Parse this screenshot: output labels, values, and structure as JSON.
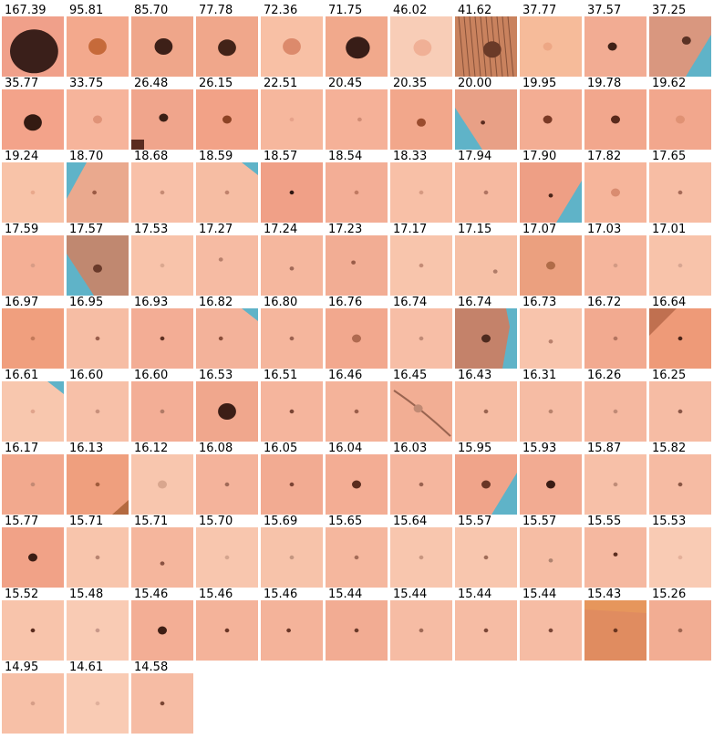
{
  "tiles": [
    {
      "score": "167.39",
      "skin": "#f0a08a",
      "lesion": "#3a1f1a",
      "les_size": "xl",
      "le_x": 0.52,
      "le_y": 0.58,
      "artifact": "none"
    },
    {
      "score": "95.81",
      "skin": "#f3a98d",
      "lesion": "#c66a3a",
      "les_size": "m",
      "le_x": 0.5,
      "le_y": 0.5,
      "artifact": "none"
    },
    {
      "score": "85.70",
      "skin": "#efa68a",
      "lesion": "#3d2018",
      "les_size": "m",
      "le_x": 0.52,
      "le_y": 0.5,
      "artifact": "none"
    },
    {
      "score": "77.78",
      "skin": "#f0a78b",
      "lesion": "#432318",
      "les_size": "m",
      "le_x": 0.5,
      "le_y": 0.52,
      "artifact": "none"
    },
    {
      "score": "72.36",
      "skin": "#f8c0a5",
      "lesion": "#dc8a6c",
      "les_size": "m",
      "le_x": 0.5,
      "le_y": 0.5,
      "artifact": "none"
    },
    {
      "score": "71.75",
      "skin": "#f1a98c",
      "lesion": "#381d17",
      "les_size": "l",
      "le_x": 0.52,
      "le_y": 0.52,
      "artifact": "none"
    },
    {
      "score": "46.02",
      "skin": "#f8cdb7",
      "lesion": "#f0b096",
      "les_size": "m",
      "le_x": 0.52,
      "le_y": 0.52,
      "artifact": "none"
    },
    {
      "score": "41.62",
      "skin": "#c9825e",
      "lesion": "#6a3a28",
      "les_size": "m",
      "le_x": 0.6,
      "le_y": 0.55,
      "artifact": "hair"
    },
    {
      "score": "37.77",
      "skin": "#f6bb9a",
      "lesion": "#eda785",
      "les_size": "s",
      "le_x": 0.45,
      "le_y": 0.5,
      "artifact": "none"
    },
    {
      "score": "37.57",
      "skin": "#f2ac93",
      "lesion": "#402218",
      "les_size": "s",
      "le_x": 0.45,
      "le_y": 0.5,
      "artifact": "none"
    },
    {
      "score": "37.25",
      "skin": "#d9977f",
      "lesion": "#5a3225",
      "les_size": "s",
      "le_x": 0.6,
      "le_y": 0.4,
      "artifact": "blue-br"
    },
    {
      "score": "35.77",
      "skin": "#f3a38a",
      "lesion": "#341a12",
      "les_size": "m",
      "le_x": 0.5,
      "le_y": 0.55,
      "artifact": "none"
    },
    {
      "score": "33.75",
      "skin": "#f6b49b",
      "lesion": "#e09378",
      "les_size": "s",
      "le_x": 0.5,
      "le_y": 0.5,
      "artifact": "none"
    },
    {
      "score": "26.48",
      "skin": "#f0a58c",
      "lesion": "#3b2016",
      "les_size": "s",
      "le_x": 0.52,
      "le_y": 0.47,
      "artifact": "corner"
    },
    {
      "score": "26.15",
      "skin": "#f2a287",
      "lesion": "#8d4325",
      "les_size": "s",
      "le_x": 0.5,
      "le_y": 0.5,
      "artifact": "none"
    },
    {
      "score": "22.51",
      "skin": "#f6b79d",
      "lesion": "#e6a28a",
      "les_size": "xs",
      "le_x": 0.5,
      "le_y": 0.5,
      "artifact": "none"
    },
    {
      "score": "20.45",
      "skin": "#f5b198",
      "lesion": "#d08c74",
      "les_size": "xs",
      "le_x": 0.55,
      "le_y": 0.5,
      "artifact": "none"
    },
    {
      "score": "20.35",
      "skin": "#f2a78b",
      "lesion": "#9a4c2e",
      "les_size": "s",
      "le_x": 0.5,
      "le_y": 0.55,
      "artifact": "none"
    },
    {
      "score": "20.00",
      "skin": "#e8a086",
      "lesion": "#5a2c20",
      "les_size": "xs",
      "le_x": 0.45,
      "le_y": 0.55,
      "artifact": "blue-bl"
    },
    {
      "score": "19.95",
      "skin": "#f3ad93",
      "lesion": "#7a3a26",
      "les_size": "s",
      "le_x": 0.45,
      "le_y": 0.5,
      "artifact": "none"
    },
    {
      "score": "19.78",
      "skin": "#f2a78d",
      "lesion": "#5a2a1c",
      "les_size": "s",
      "le_x": 0.5,
      "le_y": 0.5,
      "artifact": "none"
    },
    {
      "score": "19.62",
      "skin": "#f2a78d",
      "lesion": "#e09274",
      "les_size": "s",
      "le_x": 0.5,
      "le_y": 0.5,
      "artifact": "none"
    },
    {
      "score": "19.24",
      "skin": "#f8c3a8",
      "lesion": "#e9a98c",
      "les_size": "xs",
      "le_x": 0.5,
      "le_y": 0.5,
      "artifact": "none"
    },
    {
      "score": "18.70",
      "skin": "#eaa98e",
      "lesion": "#9a5a44",
      "les_size": "xs",
      "le_x": 0.45,
      "le_y": 0.5,
      "artifact": "blue-tl"
    },
    {
      "score": "18.68",
      "skin": "#f8c0a8",
      "lesion": "#c68b74",
      "les_size": "xs",
      "le_x": 0.5,
      "le_y": 0.5,
      "artifact": "none"
    },
    {
      "score": "18.59",
      "skin": "#f6bda3",
      "lesion": "#c0826c",
      "les_size": "xs",
      "le_x": 0.5,
      "le_y": 0.5,
      "artifact": "blue-tr"
    },
    {
      "score": "18.57",
      "skin": "#f0a087",
      "lesion": "#2e1712",
      "les_size": "xs",
      "le_x": 0.5,
      "le_y": 0.5,
      "artifact": "none"
    },
    {
      "score": "18.54",
      "skin": "#f3ae96",
      "lesion": "#c07a62",
      "les_size": "xs",
      "le_x": 0.5,
      "le_y": 0.5,
      "artifact": "none"
    },
    {
      "score": "18.33",
      "skin": "#f8c0a7",
      "lesion": "#d69a82",
      "les_size": "xs",
      "le_x": 0.5,
      "le_y": 0.5,
      "artifact": "none"
    },
    {
      "score": "17.94",
      "skin": "#f6b9a0",
      "lesion": "#b07462",
      "les_size": "xs",
      "le_x": 0.5,
      "le_y": 0.5,
      "artifact": "none"
    },
    {
      "score": "17.90",
      "skin": "#ee9f85",
      "lesion": "#4a2418",
      "les_size": "xs",
      "le_x": 0.5,
      "le_y": 0.55,
      "artifact": "blue-br"
    },
    {
      "score": "17.82",
      "skin": "#f6b59b",
      "lesion": "#d98c70",
      "les_size": "s",
      "le_x": 0.5,
      "le_y": 0.5,
      "artifact": "none"
    },
    {
      "score": "17.65",
      "skin": "#f7bda4",
      "lesion": "#a66a58",
      "les_size": "xs",
      "le_x": 0.5,
      "le_y": 0.5,
      "artifact": "none"
    },
    {
      "score": "17.59",
      "skin": "#f4af95",
      "lesion": "#d89c86",
      "les_size": "xs",
      "le_x": 0.5,
      "le_y": 0.5,
      "artifact": "none"
    },
    {
      "score": "17.57",
      "skin": "#c08870",
      "lesion": "#6a3a2a",
      "les_size": "s",
      "le_x": 0.5,
      "le_y": 0.55,
      "artifact": "blue-bl"
    },
    {
      "score": "17.53",
      "skin": "#f8c3aa",
      "lesion": "#dba890",
      "les_size": "xs",
      "le_x": 0.5,
      "le_y": 0.5,
      "artifact": "none"
    },
    {
      "score": "17.27",
      "skin": "#f6bba3",
      "lesion": "#b8806c",
      "les_size": "xs",
      "le_x": 0.4,
      "le_y": 0.4,
      "artifact": "none"
    },
    {
      "score": "17.24",
      "skin": "#f5b79e",
      "lesion": "#a26a58",
      "les_size": "xs",
      "le_x": 0.5,
      "le_y": 0.55,
      "artifact": "none"
    },
    {
      "score": "17.23",
      "skin": "#f2ad94",
      "lesion": "#9a5c48",
      "les_size": "xs",
      "le_x": 0.45,
      "le_y": 0.45,
      "artifact": "none"
    },
    {
      "score": "17.17",
      "skin": "#f8c5ac",
      "lesion": "#c48c76",
      "les_size": "xs",
      "le_x": 0.5,
      "le_y": 0.5,
      "artifact": "none"
    },
    {
      "score": "17.15",
      "skin": "#f6c0a6",
      "lesion": "#b07c68",
      "les_size": "xs",
      "le_x": 0.65,
      "le_y": 0.6,
      "artifact": "none"
    },
    {
      "score": "17.07",
      "skin": "#eba07f",
      "lesion": "#b06c48",
      "les_size": "s",
      "le_x": 0.5,
      "le_y": 0.5,
      "artifact": "none"
    },
    {
      "score": "17.03",
      "skin": "#f5b59c",
      "lesion": "#d39a84",
      "les_size": "xs",
      "le_x": 0.5,
      "le_y": 0.5,
      "artifact": "none"
    },
    {
      "score": "17.01",
      "skin": "#f8c3aa",
      "lesion": "#d8a692",
      "les_size": "xs",
      "le_x": 0.5,
      "le_y": 0.5,
      "artifact": "none"
    },
    {
      "score": "16.97",
      "skin": "#f09f7e",
      "lesion": "#c47a5a",
      "les_size": "xs",
      "le_x": 0.5,
      "le_y": 0.5,
      "artifact": "none"
    },
    {
      "score": "16.95",
      "skin": "#f6bda4",
      "lesion": "#9a5e4c",
      "les_size": "xs",
      "le_x": 0.5,
      "le_y": 0.5,
      "artifact": "none"
    },
    {
      "score": "16.93",
      "skin": "#f3ad95",
      "lesion": "#5e3022",
      "les_size": "xs",
      "le_x": 0.5,
      "le_y": 0.5,
      "artifact": "none"
    },
    {
      "score": "16.82",
      "skin": "#f3b29a",
      "lesion": "#8a4e3a",
      "les_size": "xs",
      "le_x": 0.4,
      "le_y": 0.5,
      "artifact": "blue-tr"
    },
    {
      "score": "16.80",
      "skin": "#f5b69d",
      "lesion": "#9c6250",
      "les_size": "xs",
      "le_x": 0.5,
      "le_y": 0.5,
      "artifact": "none"
    },
    {
      "score": "16.76",
      "skin": "#f2a88e",
      "lesion": "#b06a50",
      "les_size": "s",
      "le_x": 0.5,
      "le_y": 0.5,
      "artifact": "none"
    },
    {
      "score": "16.74",
      "skin": "#f7bea6",
      "lesion": "#c08a76",
      "les_size": "xs",
      "le_x": 0.5,
      "le_y": 0.5,
      "artifact": "none"
    },
    {
      "score": "16.74",
      "skin": "#c4826a",
      "lesion": "#4e2a1e",
      "les_size": "s",
      "le_x": 0.5,
      "le_y": 0.5,
      "artifact": "blue-right"
    },
    {
      "score": "16.73",
      "skin": "#f8c4ac",
      "lesion": "#b8806c",
      "les_size": "xs",
      "le_x": 0.5,
      "le_y": 0.55,
      "artifact": "none"
    },
    {
      "score": "16.72",
      "skin": "#f2aa90",
      "lesion": "#b47560",
      "les_size": "xs",
      "le_x": 0.5,
      "le_y": 0.5,
      "artifact": "none"
    },
    {
      "score": "16.64",
      "skin": "#ee9a78",
      "lesion": "#4a2418",
      "les_size": "xs",
      "le_x": 0.5,
      "le_y": 0.5,
      "artifact": "dark-corner"
    },
    {
      "score": "16.61",
      "skin": "#f8c7ae",
      "lesion": "#e0a48c",
      "les_size": "xs",
      "le_x": 0.5,
      "le_y": 0.5,
      "artifact": "blue-tr"
    },
    {
      "score": "16.60",
      "skin": "#f7c0a8",
      "lesion": "#c8907c",
      "les_size": "xs",
      "le_x": 0.5,
      "le_y": 0.5,
      "artifact": "none"
    },
    {
      "score": "16.60",
      "skin": "#f3ae96",
      "lesion": "#b07a66",
      "les_size": "xs",
      "le_x": 0.5,
      "le_y": 0.5,
      "artifact": "none"
    },
    {
      "score": "16.53",
      "skin": "#f0a78d",
      "lesion": "#3c1e16",
      "les_size": "m",
      "le_x": 0.5,
      "le_y": 0.5,
      "artifact": "none"
    },
    {
      "score": "16.51",
      "skin": "#f5b59d",
      "lesion": "#7a4434",
      "les_size": "xs",
      "le_x": 0.5,
      "le_y": 0.5,
      "artifact": "none"
    },
    {
      "score": "16.46",
      "skin": "#f4b39a",
      "lesion": "#9a5e4a",
      "les_size": "xs",
      "le_x": 0.5,
      "le_y": 0.5,
      "artifact": "none"
    },
    {
      "score": "16.45",
      "skin": "#f2ae94",
      "lesion": "#c08a74",
      "les_size": "s",
      "le_x": 0.45,
      "le_y": 0.45,
      "artifact": "fold"
    },
    {
      "score": "16.43",
      "skin": "#f6bca3",
      "lesion": "#9a6450",
      "les_size": "xs",
      "le_x": 0.5,
      "le_y": 0.5,
      "artifact": "none"
    },
    {
      "score": "16.31",
      "skin": "#f6bca4",
      "lesion": "#b8826c",
      "les_size": "xs",
      "le_x": 0.5,
      "le_y": 0.5,
      "artifact": "none"
    },
    {
      "score": "16.26",
      "skin": "#f5b8a0",
      "lesion": "#c08a76",
      "les_size": "xs",
      "le_x": 0.5,
      "le_y": 0.5,
      "artifact": "none"
    },
    {
      "score": "16.25",
      "skin": "#f6bca4",
      "lesion": "#8a5646",
      "les_size": "xs",
      "le_x": 0.5,
      "le_y": 0.5,
      "artifact": "none"
    },
    {
      "score": "16.17",
      "skin": "#f2a98e",
      "lesion": "#c48a74",
      "les_size": "xs",
      "le_x": 0.5,
      "le_y": 0.5,
      "artifact": "none"
    },
    {
      "score": "16.13",
      "skin": "#ef9f7e",
      "lesion": "#a05c3c",
      "les_size": "xs",
      "le_x": 0.5,
      "le_y": 0.5,
      "artifact": "dark-br"
    },
    {
      "score": "16.12",
      "skin": "#f8c6ae",
      "lesion": "#d9a68e",
      "les_size": "s",
      "le_x": 0.5,
      "le_y": 0.5,
      "artifact": "none"
    },
    {
      "score": "16.08",
      "skin": "#f4b39b",
      "lesion": "#a06a58",
      "les_size": "xs",
      "le_x": 0.5,
      "le_y": 0.5,
      "artifact": "none"
    },
    {
      "score": "16.05",
      "skin": "#f2ab92",
      "lesion": "#7c4434",
      "les_size": "xs",
      "le_x": 0.5,
      "le_y": 0.5,
      "artifact": "none"
    },
    {
      "score": "16.04",
      "skin": "#f3ad94",
      "lesion": "#5a2c1e",
      "les_size": "s",
      "le_x": 0.5,
      "le_y": 0.5,
      "artifact": "none"
    },
    {
      "score": "16.03",
      "skin": "#f5b69e",
      "lesion": "#9a6250",
      "les_size": "xs",
      "le_x": 0.5,
      "le_y": 0.5,
      "artifact": "none"
    },
    {
      "score": "15.95",
      "skin": "#f0a48a",
      "lesion": "#6a3626",
      "les_size": "s",
      "le_x": 0.5,
      "le_y": 0.5,
      "artifact": "blue-br"
    },
    {
      "score": "15.93",
      "skin": "#f2ab92",
      "lesion": "#3a1c14",
      "les_size": "s",
      "le_x": 0.5,
      "le_y": 0.5,
      "artifact": "none"
    },
    {
      "score": "15.87",
      "skin": "#f7c0a8",
      "lesion": "#c08c78",
      "les_size": "xs",
      "le_x": 0.5,
      "le_y": 0.5,
      "artifact": "none"
    },
    {
      "score": "15.82",
      "skin": "#f6bba3",
      "lesion": "#8a5644",
      "les_size": "xs",
      "le_x": 0.5,
      "le_y": 0.5,
      "artifact": "none"
    },
    {
      "score": "15.77",
      "skin": "#f1a287",
      "lesion": "#3c1d14",
      "les_size": "s",
      "le_x": 0.5,
      "le_y": 0.5,
      "artifact": "none"
    },
    {
      "score": "15.71",
      "skin": "#f8c5ac",
      "lesion": "#b88470",
      "les_size": "xs",
      "le_x": 0.5,
      "le_y": 0.5,
      "artifact": "none"
    },
    {
      "score": "15.71",
      "skin": "#f5b69d",
      "lesion": "#8a5242",
      "les_size": "xs",
      "le_x": 0.5,
      "le_y": 0.6,
      "artifact": "none"
    },
    {
      "score": "15.70",
      "skin": "#f8c6ae",
      "lesion": "#d4a48e",
      "les_size": "xs",
      "le_x": 0.5,
      "le_y": 0.5,
      "artifact": "none"
    },
    {
      "score": "15.69",
      "skin": "#f7c3aa",
      "lesion": "#c49680",
      "les_size": "xs",
      "le_x": 0.5,
      "le_y": 0.5,
      "artifact": "none"
    },
    {
      "score": "15.65",
      "skin": "#f5b79e",
      "lesion": "#a46c58",
      "les_size": "xs",
      "le_x": 0.5,
      "le_y": 0.5,
      "artifact": "none"
    },
    {
      "score": "15.64",
      "skin": "#f8c6ae",
      "lesion": "#c89680",
      "les_size": "xs",
      "le_x": 0.5,
      "le_y": 0.5,
      "artifact": "none"
    },
    {
      "score": "15.57",
      "skin": "#f8c6ae",
      "lesion": "#a06c58",
      "les_size": "xs",
      "le_x": 0.5,
      "le_y": 0.5,
      "artifact": "none"
    },
    {
      "score": "15.57",
      "skin": "#f6bda4",
      "lesion": "#b08470",
      "les_size": "xs",
      "le_x": 0.5,
      "le_y": 0.55,
      "artifact": "none"
    },
    {
      "score": "15.55",
      "skin": "#f5b8a0",
      "lesion": "#5c2e20",
      "les_size": "xs",
      "le_x": 0.5,
      "le_y": 0.45,
      "artifact": "none"
    },
    {
      "score": "15.53",
      "skin": "#f9cbb4",
      "lesion": "#e4b09a",
      "les_size": "xs",
      "le_x": 0.5,
      "le_y": 0.5,
      "artifact": "none"
    },
    {
      "score": "15.52",
      "skin": "#f8c4ab",
      "lesion": "#5a2c1e",
      "les_size": "xs",
      "le_x": 0.5,
      "le_y": 0.5,
      "artifact": "none"
    },
    {
      "score": "15.48",
      "skin": "#f9cbb4",
      "lesion": "#c8988a",
      "les_size": "xs",
      "le_x": 0.5,
      "le_y": 0.5,
      "artifact": "none"
    },
    {
      "score": "15.46",
      "skin": "#f3ae95",
      "lesion": "#3e1e14",
      "les_size": "s",
      "le_x": 0.5,
      "le_y": 0.5,
      "artifact": "none"
    },
    {
      "score": "15.46",
      "skin": "#f4b39a",
      "lesion": "#6a3626",
      "les_size": "xs",
      "le_x": 0.5,
      "le_y": 0.5,
      "artifact": "none"
    },
    {
      "score": "15.46",
      "skin": "#f4b39a",
      "lesion": "#6a3626",
      "les_size": "xs",
      "le_x": 0.45,
      "le_y": 0.5,
      "artifact": "none"
    },
    {
      "score": "15.44",
      "skin": "#f2ac93",
      "lesion": "#6a3a2a",
      "les_size": "xs",
      "le_x": 0.5,
      "le_y": 0.5,
      "artifact": "none"
    },
    {
      "score": "15.44",
      "skin": "#f6bca4",
      "lesion": "#a06a56",
      "les_size": "xs",
      "le_x": 0.5,
      "le_y": 0.5,
      "artifact": "none"
    },
    {
      "score": "15.44",
      "skin": "#f6bca4",
      "lesion": "#7a4636",
      "les_size": "xs",
      "le_x": 0.5,
      "le_y": 0.5,
      "artifact": "none"
    },
    {
      "score": "15.44",
      "skin": "#f6bca4",
      "lesion": "#7a4636",
      "les_size": "xs",
      "le_x": 0.5,
      "le_y": 0.5,
      "artifact": "none"
    },
    {
      "score": "15.43",
      "skin": "#e08c60",
      "lesion": "#6a3620",
      "les_size": "xs",
      "le_x": 0.5,
      "le_y": 0.5,
      "artifact": "dark-bottom"
    },
    {
      "score": "15.26",
      "skin": "#f2ad93",
      "lesion": "#a06650",
      "les_size": "xs",
      "le_x": 0.5,
      "le_y": 0.5,
      "artifact": "none"
    },
    {
      "score": "14.95",
      "skin": "#f7c0a7",
      "lesion": "#d69e88",
      "les_size": "xs",
      "le_x": 0.5,
      "le_y": 0.5,
      "artifact": "none"
    },
    {
      "score": "14.61",
      "skin": "#f9cbb4",
      "lesion": "#e0b09c",
      "les_size": "xs",
      "le_x": 0.5,
      "le_y": 0.5,
      "artifact": "none"
    },
    {
      "score": "14.58",
      "skin": "#f6bca4",
      "lesion": "#7a4634",
      "les_size": "xs",
      "le_x": 0.5,
      "le_y": 0.5,
      "artifact": "none"
    }
  ]
}
